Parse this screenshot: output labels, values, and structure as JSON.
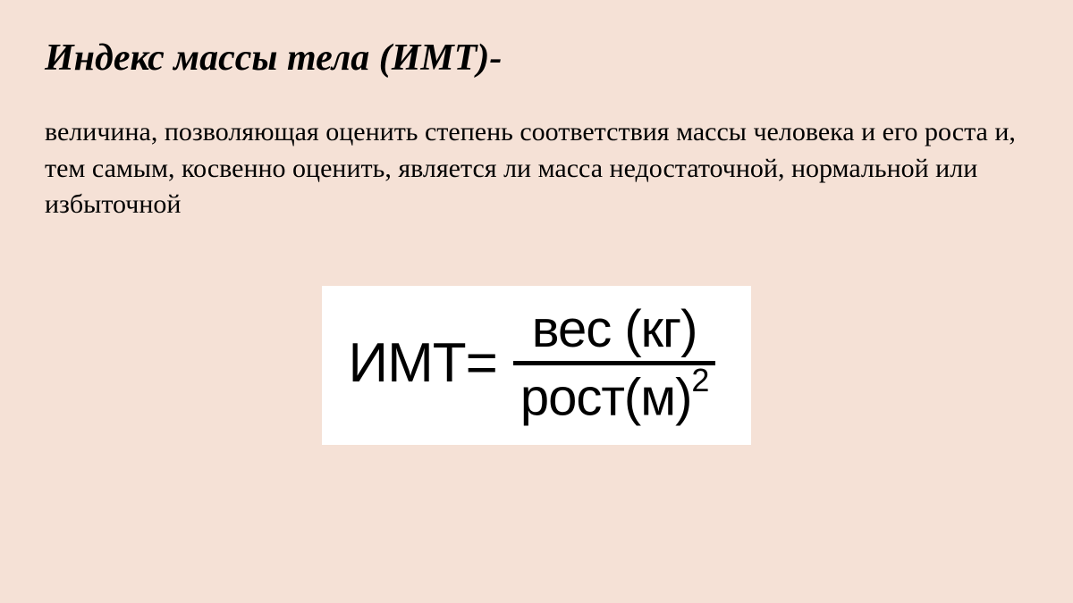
{
  "title": "Индекс массы тела (ИМТ)-",
  "description": "величина, позволяющая оценить степень соответствия массы человека и его роста и, тем самым, косвенно оценить, является ли масса недостаточной, нормальной или избыточной",
  "formula": {
    "left": "ИМТ=",
    "numerator": "вес (кг)",
    "denominator_base": "рост(м)",
    "denominator_exponent": "2"
  },
  "colors": {
    "background": "#f5e1d6",
    "text": "#000000",
    "formula_bg": "#ffffff"
  },
  "typography": {
    "title_fontsize": 42,
    "title_weight": "bold",
    "title_style": "italic",
    "description_fontsize": 30,
    "formula_fontsize": 62,
    "font_family_body": "Georgia, Times New Roman, serif",
    "font_family_formula": "Arial, Helvetica, sans-serif"
  }
}
